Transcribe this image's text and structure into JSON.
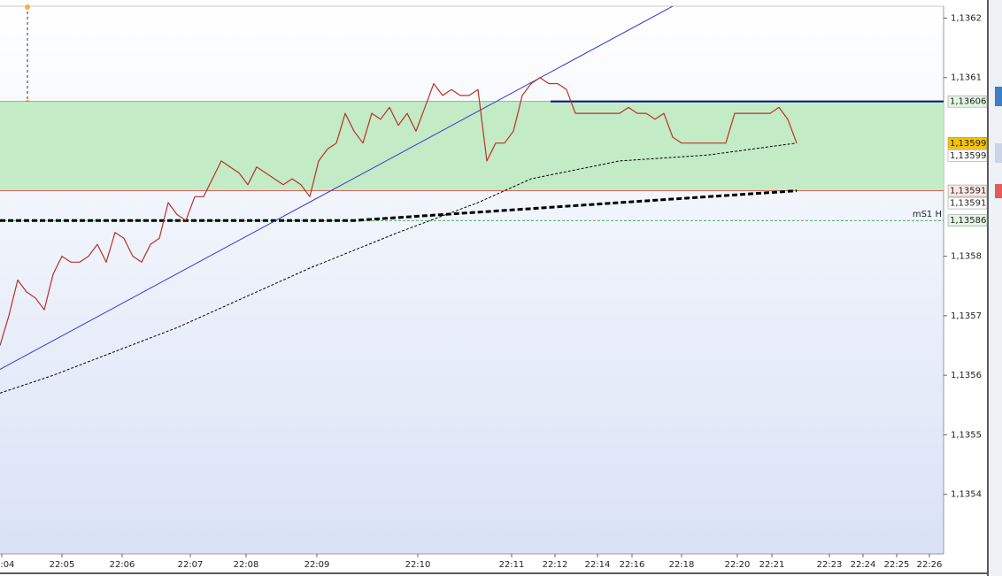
{
  "chart_data": {
    "type": "line",
    "x": [
      0,
      1,
      2,
      3,
      4,
      5,
      6,
      7,
      8,
      9,
      10,
      11,
      12,
      13,
      14,
      15,
      16,
      17,
      18,
      19,
      20,
      21,
      22,
      23,
      24,
      25,
      26,
      27,
      28,
      29,
      30,
      31,
      32,
      33,
      34,
      35,
      36,
      37,
      38,
      39,
      40,
      41,
      42,
      43,
      44,
      45,
      46,
      47,
      48,
      49,
      50,
      51,
      52,
      53,
      54,
      55,
      56,
      57,
      58,
      59,
      60,
      61,
      62,
      63,
      64,
      65,
      66,
      67,
      68,
      69,
      70,
      71,
      72,
      73,
      74,
      75,
      76,
      77,
      78,
      79,
      80,
      81,
      82,
      83,
      84,
      85,
      86,
      87,
      88,
      89,
      90
    ],
    "series": [
      {
        "color": "#b8322a",
        "values": [
          1.13565,
          1.1357,
          1.13576,
          1.13574,
          1.13573,
          1.13571,
          1.13577,
          1.1358,
          1.13579,
          1.13579,
          1.1358,
          1.13582,
          1.13579,
          1.13584,
          1.13583,
          1.1358,
          1.13579,
          1.13582,
          1.13583,
          1.13589,
          1.13587,
          1.13586,
          1.1359,
          1.1359,
          1.13593,
          1.13596,
          1.13595,
          1.13594,
          1.13592,
          1.13595,
          1.13594,
          1.13593,
          1.13592,
          1.13593,
          1.13592,
          1.1359,
          1.13596,
          1.13598,
          1.13599,
          1.13604,
          1.13601,
          1.13599,
          1.13604,
          1.13603,
          1.13605,
          1.13602,
          1.13604,
          1.13601,
          1.13605,
          1.13609,
          1.13607,
          1.13608,
          1.13607,
          1.13607,
          1.13608,
          1.13596,
          1.13599,
          1.13599,
          1.13601,
          1.13607,
          1.13609,
          1.1361,
          1.13609,
          1.13609,
          1.13608,
          1.13604,
          1.13604,
          1.13604,
          1.13604,
          1.13604,
          1.13604,
          1.13605,
          1.13604,
          1.13604,
          1.13603,
          1.13604,
          1.136,
          1.13599,
          1.13599,
          1.13599,
          1.13599,
          1.13599,
          1.13599,
          1.13604,
          1.13604,
          1.13604,
          1.13604,
          1.13604,
          1.13605,
          1.13603,
          1.13599
        ]
      }
    ],
    "moving_averages": [
      {
        "color": "#000000",
        "style": "thin-dashed",
        "x": [
          0,
          6,
          20,
          35,
          45,
          54,
          60,
          70,
          80,
          90
        ],
        "values": [
          1.13557,
          1.1356,
          1.13568,
          1.13578,
          1.13584,
          1.13589,
          1.13593,
          1.13596,
          1.13597,
          1.13599
        ]
      },
      {
        "color": "#000000",
        "style": "thick-dashed",
        "x": [
          0,
          10,
          20,
          30,
          40,
          50,
          60,
          70,
          80,
          90
        ],
        "values": [
          1.13586,
          1.13586,
          1.13586,
          1.13586,
          1.13586,
          1.13587,
          1.13588,
          1.13589,
          1.1359,
          1.13591
        ]
      }
    ],
    "trendline": {
      "color": "#3a3ad0",
      "x": [
        0,
        76
      ],
      "values": [
        1.13561,
        1.13622
      ]
    },
    "zone": {
      "top": 1.13606,
      "bottom": 1.13591,
      "color": "#c3ebc6",
      "border": "#d9534f"
    },
    "level": {
      "value": 1.13606,
      "x_start": 62.2,
      "color": "#00157a"
    },
    "pivot": {
      "value": 1.13586,
      "label": "mS1 H",
      "color": "#1f8f2a"
    },
    "price_labels": [
      {
        "value": 1.13606,
        "label": "1,13606",
        "color": "#3aa050",
        "background": "#e4f5e6"
      },
      {
        "value": 1.13599,
        "label": "1,13599",
        "color": "#000000",
        "background": "#f5c400"
      },
      {
        "value": 1.13599,
        "label": "1,13599",
        "color": "#000000",
        "background": "#ffffff"
      },
      {
        "value": 1.13591,
        "label": "1,13591",
        "color": "#c94040",
        "background": "#fbe6e6"
      },
      {
        "value": 1.13591,
        "label": "1,13591",
        "color": "#000000",
        "background": "#ffffff"
      },
      {
        "value": 1.13586,
        "label": "1,13586",
        "color": "#1f8f2a",
        "background": "#e4f5e6"
      }
    ],
    "xlim": [
      0,
      106.6
    ],
    "ylim": [
      1.1353,
      1.13622
    ],
    "yticks": [
      {
        "value": 1.1354,
        "label": "1,1354"
      },
      {
        "value": 1.1355,
        "label": "1,1355"
      },
      {
        "value": 1.1356,
        "label": "1,1356"
      },
      {
        "value": 1.1357,
        "label": "1,1357"
      },
      {
        "value": 1.1358,
        "label": "1,1358"
      },
      {
        "value": 1.1361,
        "label": "1,1361"
      },
      {
        "value": 1.1362,
        "label": "1,1362"
      }
    ],
    "xticks": [
      {
        "value": 0.2,
        "label": "22:04"
      },
      {
        "value": 7,
        "label": "22:05"
      },
      {
        "value": 13.8,
        "label": "22:06"
      },
      {
        "value": 21.5,
        "label": "22:07"
      },
      {
        "value": 27.8,
        "label": "22:08"
      },
      {
        "value": 35.8,
        "label": "22:09"
      },
      {
        "value": 47.2,
        "label": "22:10"
      },
      {
        "value": 57.8,
        "label": "22:11"
      },
      {
        "value": 62.7,
        "label": "22:12"
      },
      {
        "value": 67.5,
        "label": "22:14"
      },
      {
        "value": 71.4,
        "label": "22:16"
      },
      {
        "value": 77,
        "label": "22:18"
      },
      {
        "value": 83.3,
        "label": "22:20"
      },
      {
        "value": 87.2,
        "label": "22:21"
      },
      {
        "value": 93.7,
        "label": "22:23"
      },
      {
        "value": 97.5,
        "label": "22:24"
      },
      {
        "value": 101.3,
        "label": "22:25"
      },
      {
        "value": 105,
        "label": "22:26"
      }
    ]
  }
}
